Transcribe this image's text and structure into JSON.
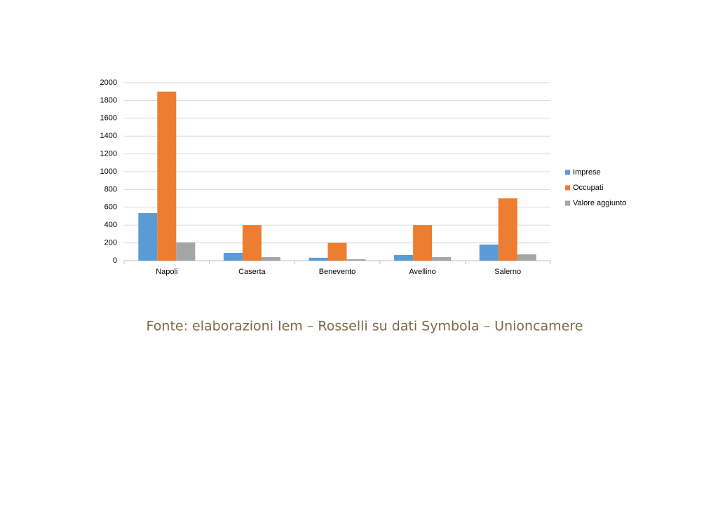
{
  "chart_data": {
    "type": "bar",
    "categories": [
      "Napoli",
      "Caserta",
      "Benevento",
      "Avellino",
      "Salerno"
    ],
    "series": [
      {
        "name": "Imprese",
        "color": "#5b9bd5",
        "values": [
          535,
          87,
          32,
          63,
          181
        ]
      },
      {
        "name": "Occupati",
        "color": "#ed7d31",
        "values": [
          1900,
          400,
          200,
          400,
          700
        ]
      },
      {
        "name": "Valore aggiunto",
        "color": "#a5a5a5",
        "values": [
          205,
          40,
          16,
          40,
          71
        ]
      }
    ],
    "ylim": [
      0,
      2000
    ],
    "yticks": [
      0,
      200,
      400,
      600,
      800,
      1000,
      1200,
      1400,
      1600,
      1800,
      2000
    ],
    "grid": true,
    "legend": "right",
    "source": "Fonte: elaborazioni Iem – Rosselli su dati Symbola – Unioncamere"
  }
}
